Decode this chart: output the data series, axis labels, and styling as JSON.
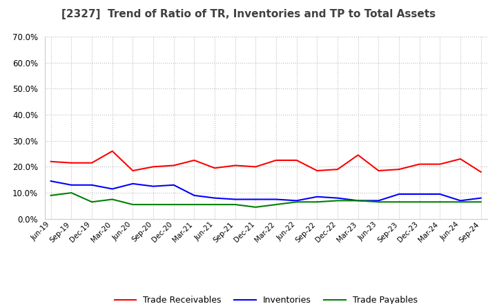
{
  "title": "[2327]  Trend of Ratio of TR, Inventories and TP to Total Assets",
  "labels": [
    "Jun-19",
    "Sep-19",
    "Dec-19",
    "Mar-20",
    "Jun-20",
    "Sep-20",
    "Dec-20",
    "Mar-21",
    "Jun-21",
    "Sep-21",
    "Dec-21",
    "Mar-22",
    "Jun-22",
    "Sep-22",
    "Dec-22",
    "Mar-23",
    "Jun-23",
    "Sep-23",
    "Dec-23",
    "Mar-24",
    "Jun-24",
    "Sep-24"
  ],
  "trade_receivables": [
    22.0,
    21.5,
    21.5,
    26.0,
    18.5,
    20.0,
    20.5,
    22.5,
    19.5,
    20.5,
    20.0,
    22.5,
    22.5,
    18.5,
    19.0,
    24.5,
    18.5,
    19.0,
    21.0,
    21.0,
    23.0,
    18.0
  ],
  "inventories": [
    14.5,
    13.0,
    13.0,
    11.5,
    13.5,
    12.5,
    13.0,
    9.0,
    8.0,
    7.5,
    7.5,
    7.5,
    7.0,
    8.5,
    8.0,
    7.0,
    7.0,
    9.5,
    9.5,
    9.5,
    7.0,
    8.0
  ],
  "trade_payables": [
    9.0,
    10.0,
    6.5,
    7.5,
    5.5,
    5.5,
    5.5,
    5.5,
    5.5,
    5.5,
    4.5,
    5.5,
    6.5,
    6.5,
    7.0,
    7.0,
    6.5,
    6.5,
    6.5,
    6.5,
    6.5,
    6.5
  ],
  "tr_color": "#FF0000",
  "inv_color": "#0000FF",
  "tp_color": "#008000",
  "ylim": [
    0,
    70
  ],
  "yticks": [
    0,
    10,
    20,
    30,
    40,
    50,
    60,
    70
  ],
  "background_color": "#FFFFFF",
  "grid_color": "#BBBBBB",
  "title_color": "#404040",
  "legend_labels": [
    "Trade Receivables",
    "Inventories",
    "Trade Payables"
  ]
}
